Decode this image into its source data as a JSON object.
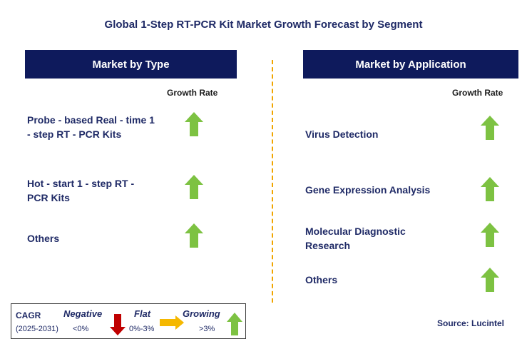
{
  "title": "Global 1-Step RT-PCR Kit Market Growth Forecast by Segment",
  "left_panel": {
    "header": "Market by Type",
    "column_label": "Growth Rate",
    "rows": [
      {
        "label": "Probe - based Real - time 1 - step RT - PCR Kits",
        "trend": "growing"
      },
      {
        "label": "Hot - start 1 - step RT - PCR Kits",
        "trend": "growing"
      },
      {
        "label": "Others",
        "trend": "growing"
      }
    ]
  },
  "right_panel": {
    "header": "Market by Application",
    "column_label": "Growth Rate",
    "rows": [
      {
        "label": "Virus Detection",
        "trend": "growing"
      },
      {
        "label": "Gene Expression Analysis",
        "trend": "growing"
      },
      {
        "label": "Molecular Diagnostic Research",
        "trend": "growing"
      },
      {
        "label": "Others",
        "trend": "growing"
      }
    ]
  },
  "legend": {
    "cagr_label": "CAGR",
    "period": "(2025-2031)",
    "negative_label": "Negative",
    "negative_range": "<0%",
    "flat_label": "Flat",
    "flat_range": "0%-3%",
    "growing_label": "Growing",
    "growing_range": ">3%"
  },
  "source": "Source: Lucintel",
  "colors": {
    "header_bg": "#0e1a5c",
    "growing": "#7dc242",
    "negative": "#c00000",
    "flat": "#f5b800",
    "divider": "#f0a500"
  }
}
